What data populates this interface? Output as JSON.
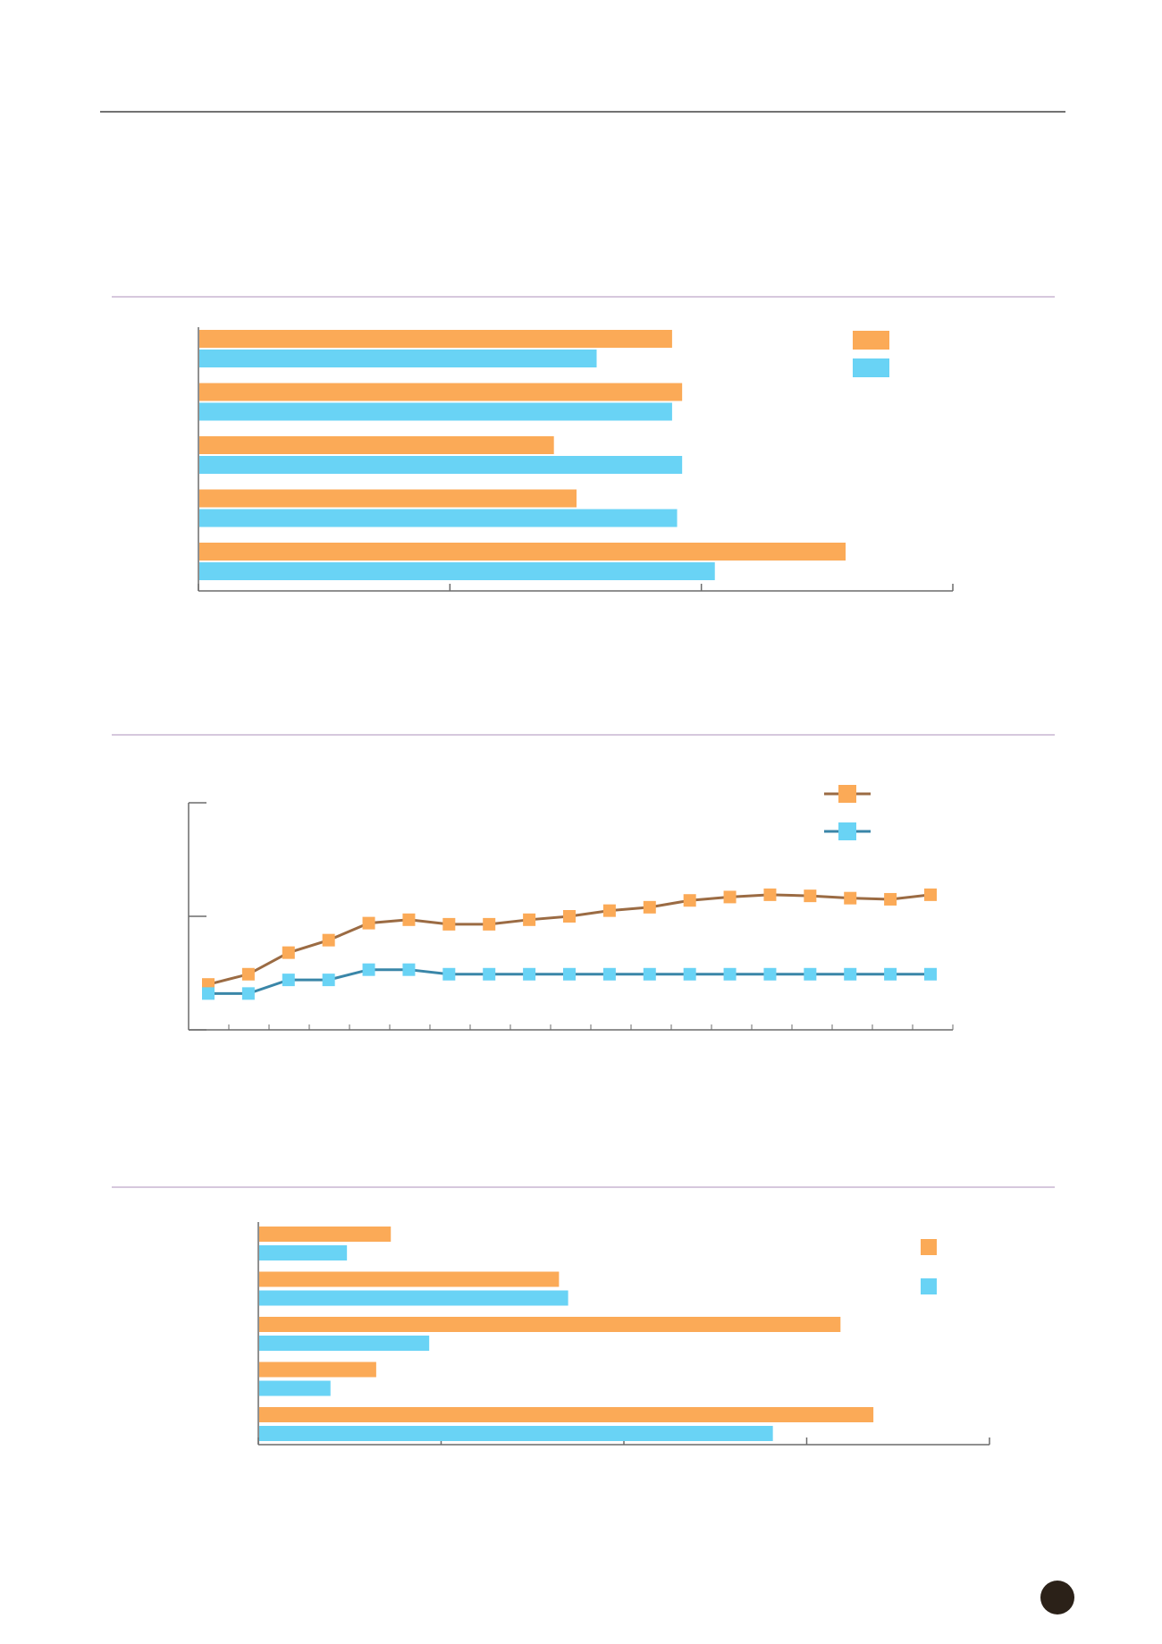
{
  "colors": {
    "orange": "#FBAA57",
    "cyan": "#69D3F5",
    "brown_line": "#9B6B43",
    "teal_line": "#3A86A8",
    "rule": "#444444",
    "section_rule": "#C9B6D2",
    "axis": "#6b6b6b",
    "page_badge": "#2B2118"
  },
  "chart_data": [
    {
      "type": "bar",
      "orientation": "horizontal",
      "categories": [
        "",
        "",
        "",
        "",
        ""
      ],
      "xlim": [
        0,
        3
      ],
      "series": [
        {
          "color": "orange",
          "values": [
            1.88,
            1.92,
            1.41,
            1.5,
            2.57
          ]
        },
        {
          "color": "cyan",
          "values": [
            1.58,
            1.88,
            1.92,
            1.9,
            2.05
          ]
        }
      ],
      "legend": "top-right"
    },
    {
      "type": "line",
      "x": [
        1,
        2,
        3,
        4,
        5,
        6,
        7,
        8,
        9,
        10,
        11,
        12,
        13,
        14,
        15,
        16,
        17,
        18,
        19
      ],
      "ylim": [
        0,
        2
      ],
      "series": [
        {
          "color": "orange",
          "line_color": "brown_line",
          "values": [
            0.4,
            0.49,
            0.68,
            0.79,
            0.94,
            0.97,
            0.93,
            0.93,
            0.97,
            1.0,
            1.05,
            1.08,
            1.14,
            1.17,
            1.19,
            1.18,
            1.16,
            1.15,
            1.19
          ]
        },
        {
          "color": "cyan",
          "line_color": "teal_line",
          "values": [
            0.32,
            0.32,
            0.44,
            0.44,
            0.53,
            0.53,
            0.49,
            0.49,
            0.49,
            0.49,
            0.49,
            0.49,
            0.49,
            0.49,
            0.49,
            0.49,
            0.49,
            0.49,
            0.49
          ]
        }
      ],
      "legend": "top-right"
    },
    {
      "type": "bar",
      "orientation": "horizontal",
      "categories": [
        "",
        "",
        "",
        "",
        ""
      ],
      "xlim": [
        0,
        4
      ],
      "series": [
        {
          "color": "orange",
          "values": [
            0.72,
            1.64,
            3.18,
            0.64,
            3.36
          ]
        },
        {
          "color": "cyan",
          "values": [
            0.48,
            1.69,
            0.93,
            0.39,
            2.81
          ]
        }
      ],
      "legend": "top-right"
    }
  ]
}
